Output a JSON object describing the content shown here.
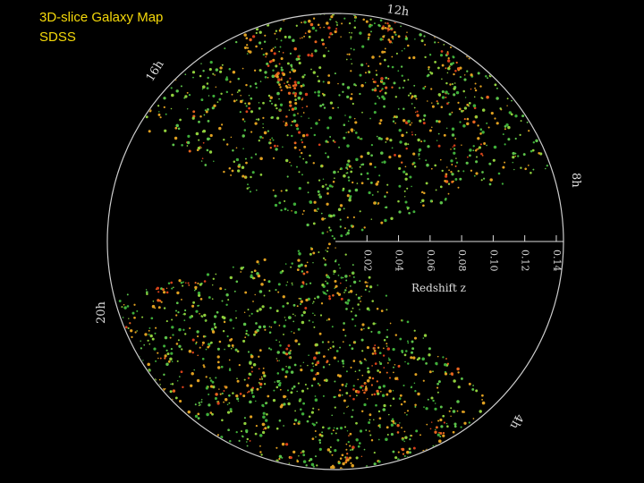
{
  "title": [
    "3D-slice Galaxy Map",
    "SDSS"
  ],
  "hour_labels": [
    "12h",
    "16h",
    "8h",
    "20h",
    "4h"
  ],
  "redshift_axis": {
    "label": "Redshift  z",
    "ticks": [
      0.02,
      0.04,
      0.06,
      0.08,
      0.1,
      0.12,
      0.14
    ]
  }
}
